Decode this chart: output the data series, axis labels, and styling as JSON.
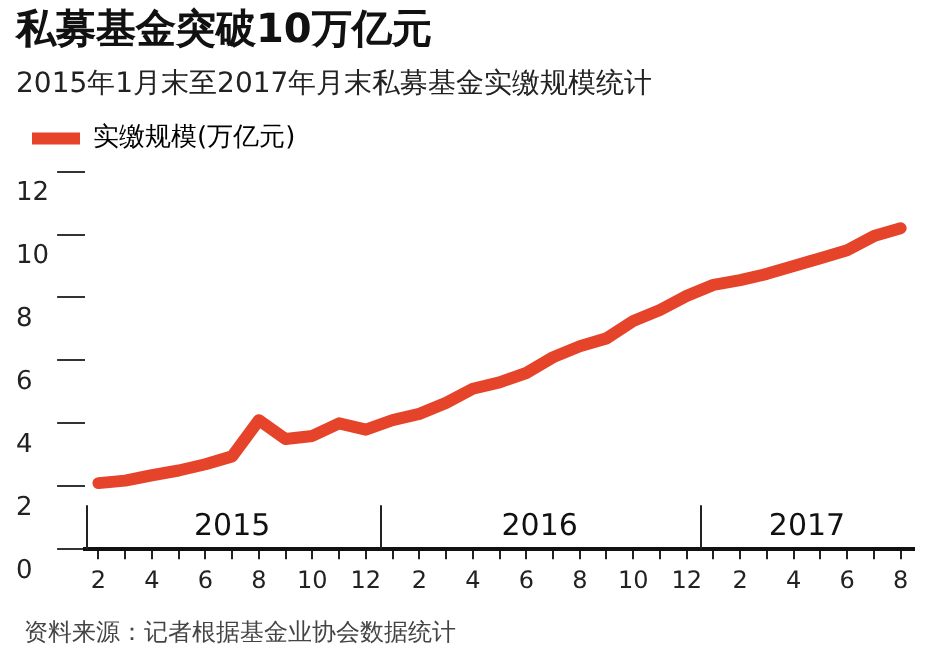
{
  "chart_data": {
    "type": "line",
    "title": "私募基金突破10万亿元",
    "subtitle": "2015年1月末至2017年月末私募基金实缴规模统计",
    "x": [
      "2015-02",
      "2015-03",
      "2015-04",
      "2015-05",
      "2015-06",
      "2015-07",
      "2015-08",
      "2015-09",
      "2015-10",
      "2015-11",
      "2015-12",
      "2016-01",
      "2016-02",
      "2016-03",
      "2016-04",
      "2016-05",
      "2016-06",
      "2016-07",
      "2016-08",
      "2016-09",
      "2016-10",
      "2016-11",
      "2016-12",
      "2017-01",
      "2017-02",
      "2017-03",
      "2017-04",
      "2017-05",
      "2017-06",
      "2017-07",
      "2017-08"
    ],
    "series": [
      {
        "name": "实缴规模(万亿元)",
        "color": "#e5432a",
        "values": [
          2.1,
          2.18,
          2.35,
          2.5,
          2.7,
          2.95,
          4.1,
          3.5,
          3.6,
          4.0,
          3.8,
          4.1,
          4.3,
          4.65,
          5.1,
          5.3,
          5.6,
          6.1,
          6.45,
          6.7,
          7.25,
          7.6,
          8.05,
          8.4,
          8.55,
          8.75,
          9.0,
          9.25,
          9.5,
          9.95,
          10.2
        ]
      }
    ],
    "xlim": [
      "2015-01-16",
      "2017-08-16"
    ],
    "xticks": [
      {
        "value": "2015-02",
        "label": "2"
      },
      {
        "value": "2015-03",
        "label": null
      },
      {
        "value": "2015-04",
        "label": "4"
      },
      {
        "value": "2015-05",
        "label": null
      },
      {
        "value": "2015-06",
        "label": "6"
      },
      {
        "value": "2015-07",
        "label": null
      },
      {
        "value": "2015-08",
        "label": "8"
      },
      {
        "value": "2015-09",
        "label": null
      },
      {
        "value": "2015-10",
        "label": "10"
      },
      {
        "value": "2015-11",
        "label": null
      },
      {
        "value": "2015-12",
        "label": "12"
      },
      {
        "value": "2016-01",
        "label": null
      },
      {
        "value": "2016-02",
        "label": "2"
      },
      {
        "value": "2016-03",
        "label": null
      },
      {
        "value": "2016-04",
        "label": "4"
      },
      {
        "value": "2016-05",
        "label": null
      },
      {
        "value": "2016-06",
        "label": "6"
      },
      {
        "value": "2016-07",
        "label": null
      },
      {
        "value": "2016-08",
        "label": "8"
      },
      {
        "value": "2016-09",
        "label": null
      },
      {
        "value": "2016-10",
        "label": "10"
      },
      {
        "value": "2016-11",
        "label": null
      },
      {
        "value": "2016-12",
        "label": "12"
      },
      {
        "value": "2017-01",
        "label": null
      },
      {
        "value": "2017-02",
        "label": "2"
      },
      {
        "value": "2017-03",
        "label": null
      },
      {
        "value": "2017-04",
        "label": "4"
      },
      {
        "value": "2017-05",
        "label": null
      },
      {
        "value": "2017-06",
        "label": "6"
      },
      {
        "value": "2017-07",
        "label": null
      },
      {
        "value": "2017-08",
        "label": "8"
      }
    ],
    "ylim": [
      0,
      12
    ],
    "yticks": [
      0,
      2,
      4,
      6,
      8,
      10,
      12
    ],
    "ref_lines": [
      {
        "axis": "x",
        "value": "2015-01-16",
        "label": null,
        "color": "#222222"
      },
      {
        "axis": "x",
        "value": "2015-12-16",
        "label": null,
        "color": "#222222"
      },
      {
        "axis": "x",
        "value": "2016-12-16",
        "label": null,
        "color": "#222222"
      }
    ],
    "legend": "top left",
    "marker": "none",
    "line_style": "solid",
    "annotations": [
      "2015",
      "2016",
      "2017",
      "资料来源：记者根据基金业协会数据统计"
    ]
  }
}
